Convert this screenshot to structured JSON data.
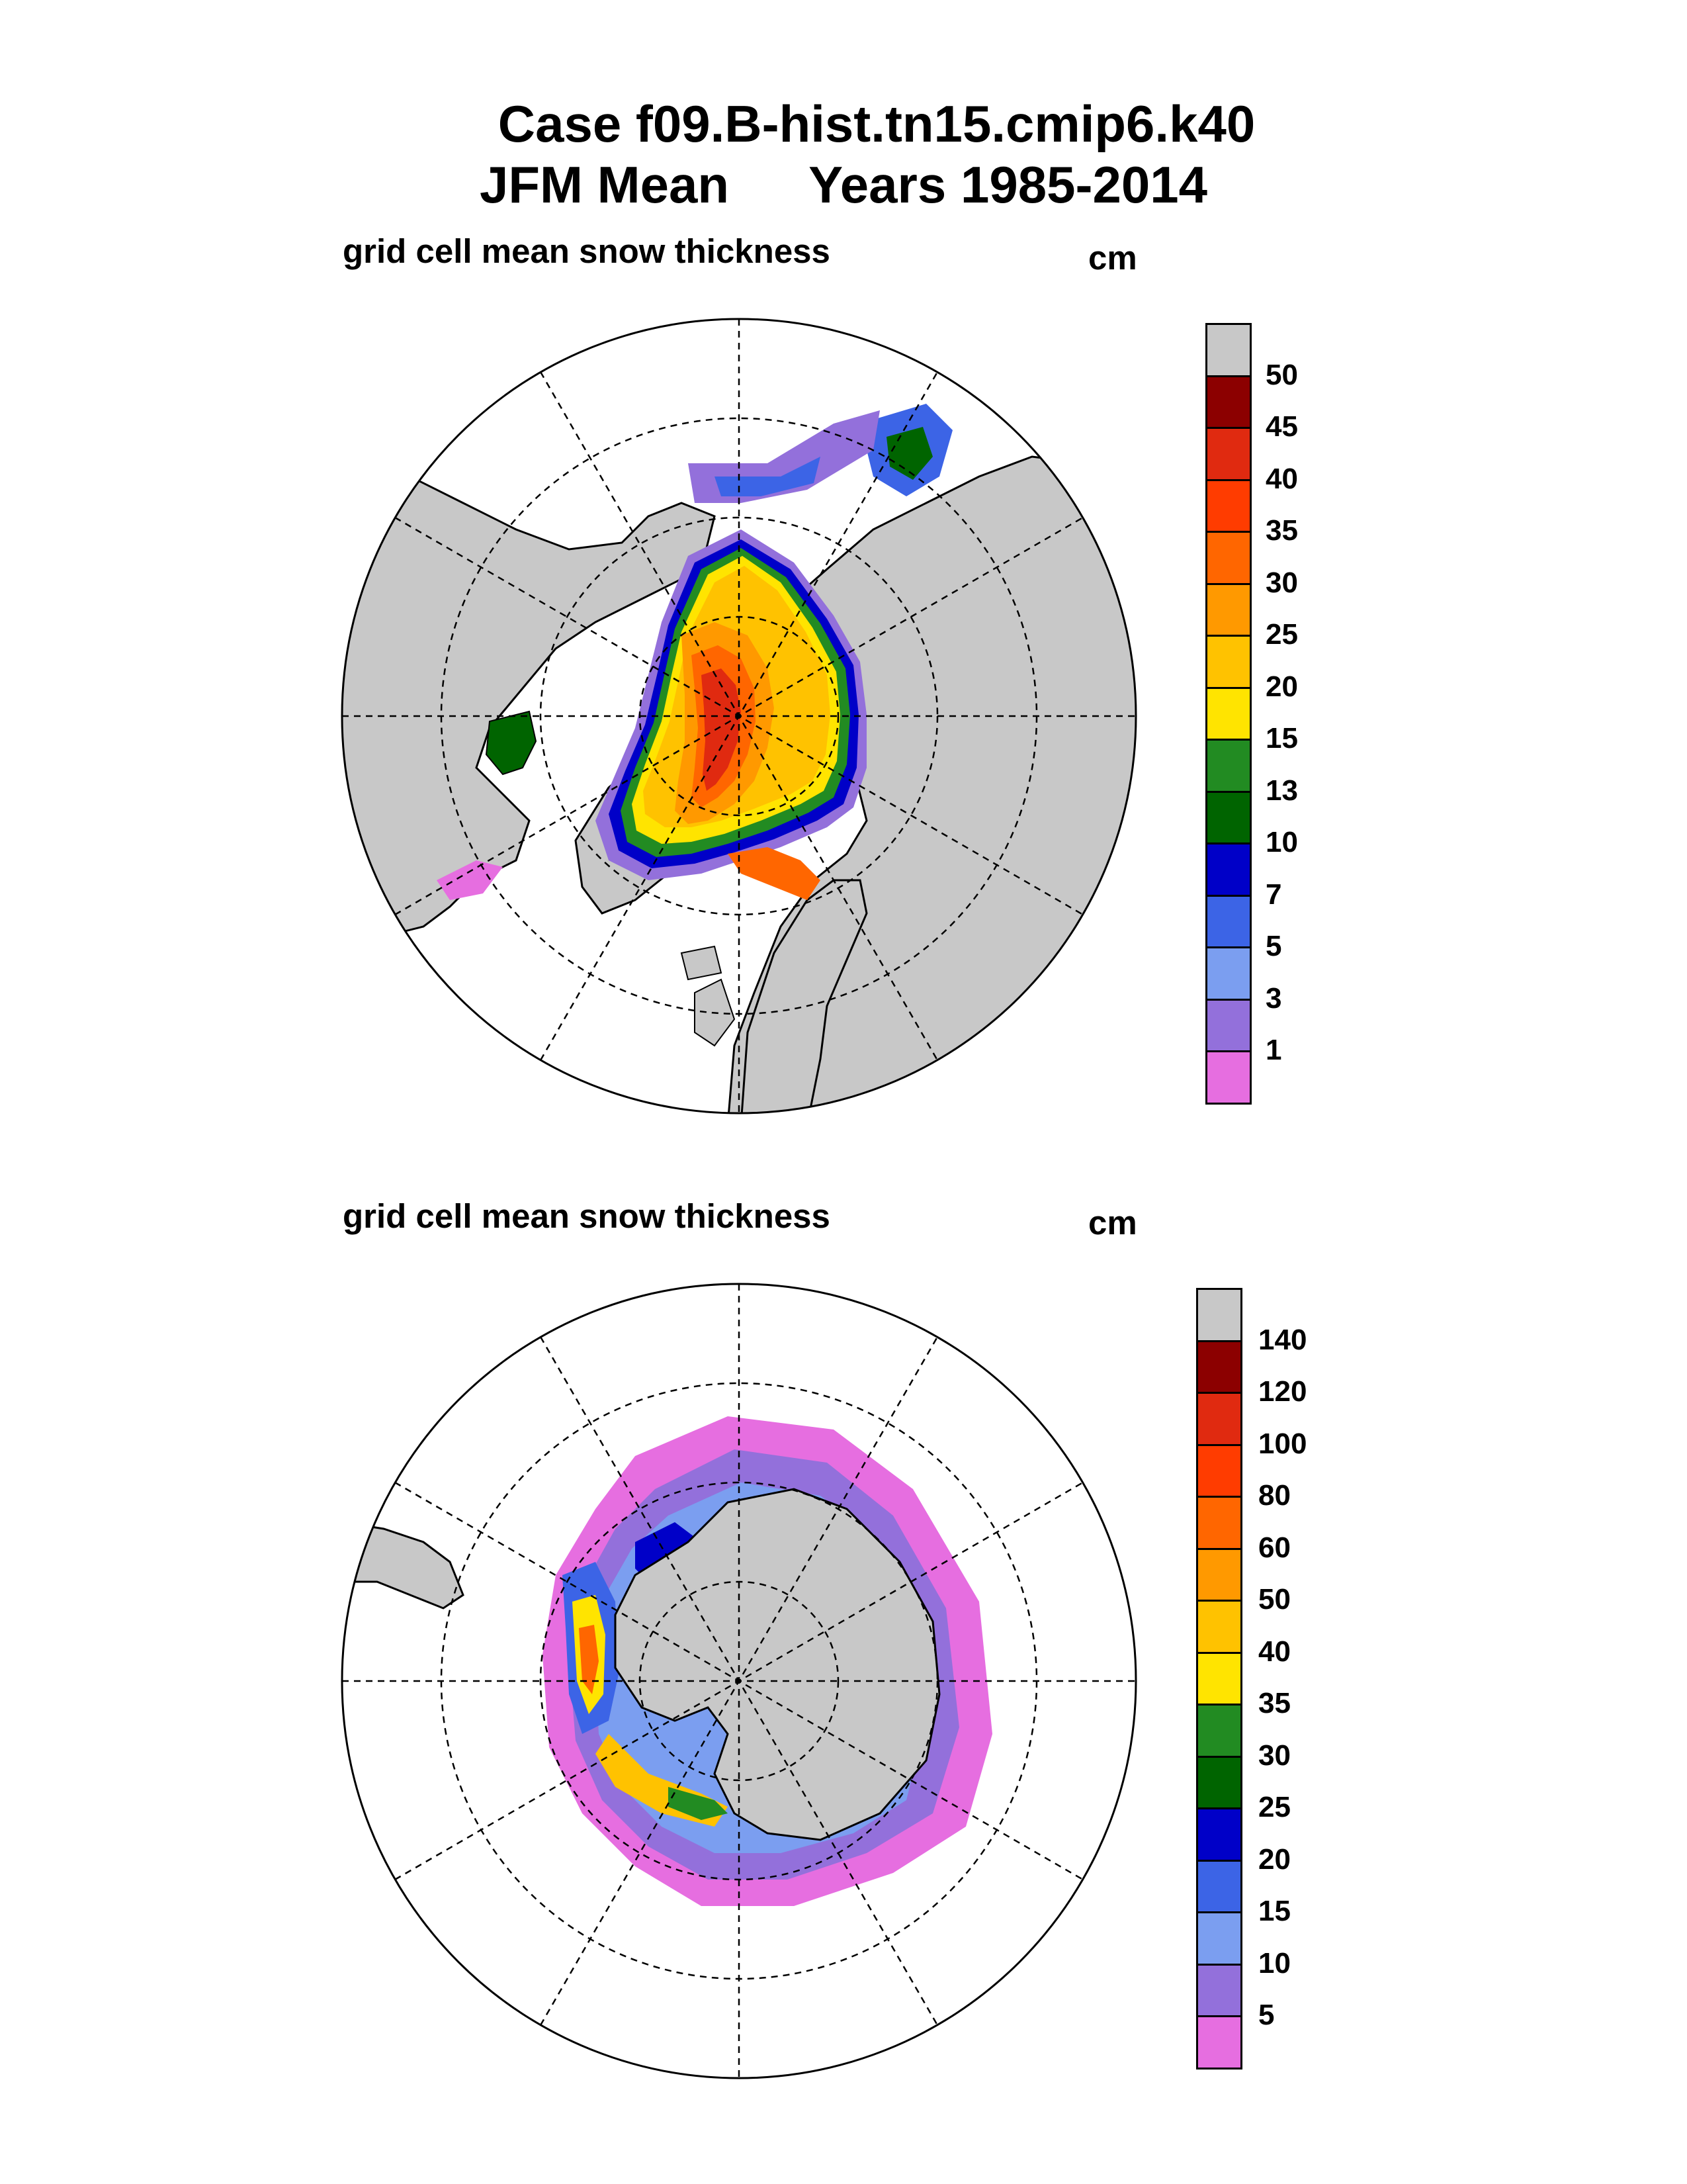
{
  "header": {
    "case_line": "Case f09.B-hist.tn15.cmip6.k40",
    "season": "JFM Mean",
    "years": "Years 1985-2014"
  },
  "panels": [
    {
      "id": "nh",
      "title": "grid cell mean snow thickness",
      "unit": "cm",
      "colorbar_labels": [
        "50",
        "45",
        "40",
        "35",
        "30",
        "25",
        "20",
        "15",
        "13",
        "10",
        "7",
        "5",
        "3",
        "1"
      ]
    },
    {
      "id": "sh",
      "title": "grid cell mean snow thickness",
      "unit": "cm",
      "colorbar_labels": [
        "140",
        "120",
        "100",
        "80",
        "60",
        "50",
        "40",
        "35",
        "30",
        "25",
        "20",
        "15",
        "10",
        "5"
      ]
    }
  ],
  "colors": {
    "scale": [
      "#c8c8c8",
      "#8c0000",
      "#e02a10",
      "#ff3c00",
      "#ff6600",
      "#ff9900",
      "#ffc200",
      "#ffe400",
      "#228b22",
      "#006400",
      "#0000c8",
      "#3c64e6",
      "#7b9ef0",
      "#9370db",
      "#e66ee0"
    ],
    "land": "#c8c8c8",
    "ocean": "#ffffff",
    "grid": "#000000"
  }
}
